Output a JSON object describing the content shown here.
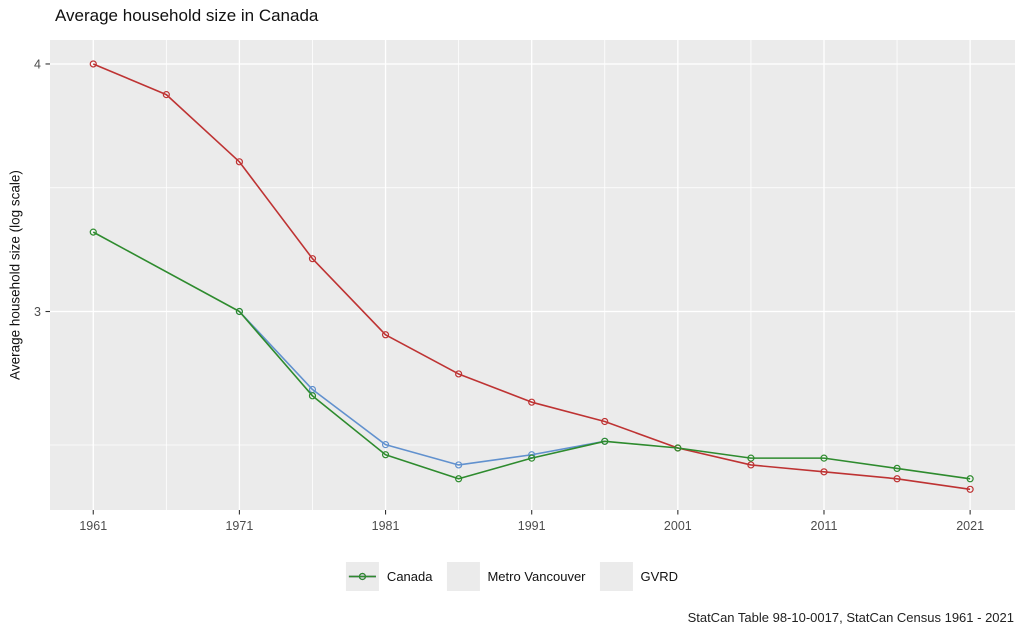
{
  "title": "Average household size in Canada",
  "y_axis_label": "Average household size (log scale)",
  "caption": "StatCan Table 98-10-0017, StatCan Census 1961 - 2021",
  "colors": {
    "canada": "#be3333",
    "metro_vancouver": "#6191ce",
    "gvrd": "#2e8b2e",
    "panel_bg": "#ebebeb",
    "grid": "#ffffff",
    "tick_label": "#4d4d4d",
    "tick_mark": "#333333",
    "legend_key_bg": "#ebebeb"
  },
  "chart_data": {
    "type": "line",
    "title": "Average household size in Canada",
    "xlabel": "",
    "ylabel": "Average household size (log scale)",
    "y_scale": "log",
    "grid": "on",
    "legend_position": "bottom",
    "xlim": [
      1958.04,
      2024.07
    ],
    "ylim": [
      2.382,
      4.113
    ],
    "x_ticks": [
      1961,
      1971,
      1981,
      1991,
      2001,
      2011,
      2021
    ],
    "x_tick_labels": [
      "1961",
      "1971",
      "1981",
      "1991",
      "2001",
      "2011",
      "2021"
    ],
    "x_minor": [
      1966,
      1976,
      1986,
      1996,
      2006,
      2016
    ],
    "y_ticks": [
      4,
      3
    ],
    "y_tick_labels": [
      "4",
      "3"
    ],
    "y_minor": [
      3.464,
      2.569
    ],
    "series": [
      {
        "name": "Canada",
        "color_key": "canada",
        "points": [
          [
            1961,
            4.0
          ],
          [
            1966,
            3.86
          ],
          [
            1971,
            3.57
          ],
          [
            1976,
            3.19
          ],
          [
            1981,
            2.92
          ],
          [
            1986,
            2.79
          ],
          [
            1991,
            2.7
          ],
          [
            1996,
            2.64
          ],
          [
            2001,
            2.56
          ],
          [
            2006,
            2.51
          ],
          [
            2011,
            2.49
          ],
          [
            2016,
            2.47
          ],
          [
            2021,
            2.44
          ]
        ]
      },
      {
        "name": "Metro Vancouver",
        "color_key": "metro_vancouver",
        "points": [
          [
            1971,
            3.0
          ],
          [
            1976,
            2.74
          ],
          [
            1981,
            2.57
          ],
          [
            1986,
            2.51
          ],
          [
            1991,
            2.54
          ],
          [
            1996,
            2.58
          ]
        ]
      },
      {
        "name": "GVRD",
        "color_key": "gvrd",
        "points": [
          [
            1961,
            3.29
          ],
          [
            1971,
            3.0
          ],
          [
            1976,
            2.72
          ],
          [
            1981,
            2.54
          ],
          [
            1986,
            2.47
          ],
          [
            1991,
            2.53
          ],
          [
            1996,
            2.58
          ],
          [
            2001,
            2.56
          ],
          [
            2006,
            2.53
          ],
          [
            2011,
            2.53
          ],
          [
            2016,
            2.5
          ],
          [
            2021,
            2.47
          ]
        ]
      }
    ]
  }
}
